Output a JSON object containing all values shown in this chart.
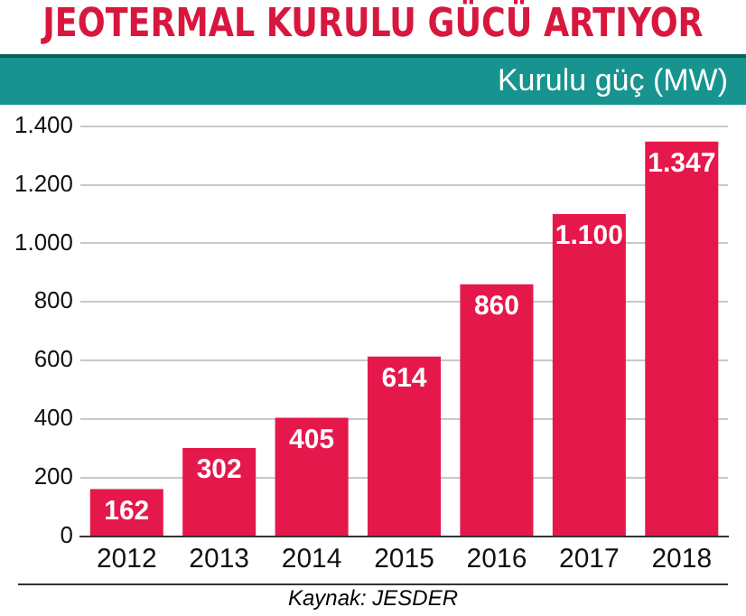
{
  "chart_data": {
    "type": "bar",
    "title": "JEOTERMAL KURULU GÜCÜ ARTIYOR",
    "ylabel": "Kurulu güç (MW)",
    "categories": [
      "2012",
      "2013",
      "2014",
      "2015",
      "2016",
      "2017",
      "2018"
    ],
    "values": [
      162,
      302,
      405,
      614,
      860,
      1100,
      1347
    ],
    "color": "#e5184b",
    "value_labels": [
      "162",
      "302",
      "405",
      "614",
      "860",
      "1.100",
      "1.347"
    ],
    "ylim": [
      0,
      1400
    ],
    "yticks": [
      {
        "value": 0,
        "label": "0"
      },
      {
        "value": 200,
        "label": "200"
      },
      {
        "value": 400,
        "label": "400"
      },
      {
        "value": 600,
        "label": "600"
      },
      {
        "value": 800,
        "label": "800"
      },
      {
        "value": 1000,
        "label": "1.000"
      },
      {
        "value": 1200,
        "label": "1.200"
      },
      {
        "value": 1400,
        "label": "1.400"
      }
    ],
    "grid": "y",
    "legend": false,
    "annotations": [
      "Kaynak: JESDER"
    ]
  }
}
